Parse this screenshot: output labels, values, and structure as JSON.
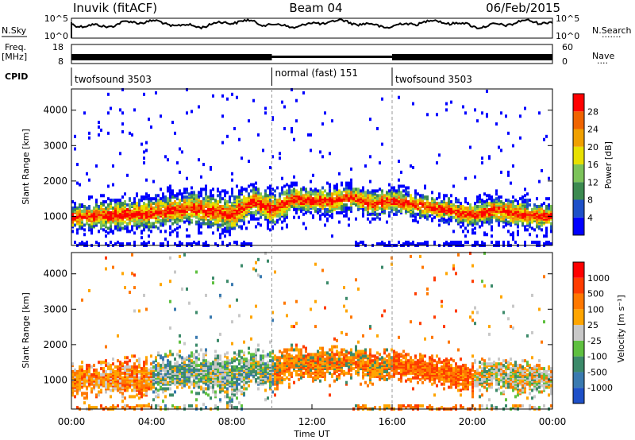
{
  "header": {
    "station": "Inuvik (fitACF)",
    "beam": "Beam 04",
    "date": "06/Feb/2015"
  },
  "side_labels": {
    "nsky": "N.Sky",
    "freq": "Freq.",
    "freq_unit": "[MHz]",
    "cpid": "CPID",
    "nsearch": "N.Search",
    "nave": "Nave",
    "dots": "·······",
    "dots_short": "····"
  },
  "noise_panel": {
    "left_ticks": [
      "10^5",
      "10^0"
    ],
    "right_ticks": [
      "10^5",
      "10^0"
    ]
  },
  "freq_panel": {
    "left_ticks": [
      "18",
      "8"
    ],
    "right_ticks": [
      "60",
      "0"
    ]
  },
  "cpid_segments": [
    {
      "label": "twofsound 3503",
      "start_hr": 0,
      "end_hr": 10
    },
    {
      "label": "normal (fast) 151",
      "start_hr": 10,
      "end_hr": 16
    },
    {
      "label": "twofsound 3503",
      "start_hr": 16,
      "end_hr": 24
    }
  ],
  "x_axis": {
    "label": "Time UT",
    "range_hr": [
      0,
      24
    ],
    "ticks": [
      "00:00",
      "04:00",
      "08:00",
      "12:00",
      "16:00",
      "20:00",
      "00:00"
    ]
  },
  "chart_data": [
    {
      "type": "heatmap",
      "name": "power",
      "ylabel": "Slant Range [km]",
      "ylim": [
        180,
        4600
      ],
      "yticks": [
        "1000",
        "2000",
        "3000",
        "4000"
      ],
      "colorbar_label": "Power [dB]",
      "colorbar_ticks": [
        "28",
        "24",
        "20",
        "16",
        "12",
        "8",
        "4"
      ],
      "colors": [
        "#0000ff",
        "#1e50c8",
        "#3c8a50",
        "#7cc35a",
        "#e8e000",
        "#f0a000",
        "#f06400",
        "#ff0000"
      ]
    },
    {
      "type": "heatmap",
      "name": "velocity",
      "ylabel": "Slant Range [km]",
      "ylim": [
        180,
        4600
      ],
      "yticks": [
        "1000",
        "2000",
        "3000",
        "4000"
      ],
      "colorbar_label": "Velocity [m s⁻¹]",
      "colorbar_ticks": [
        "1000",
        "500",
        "100",
        "25",
        "-25",
        "-100",
        "-500",
        "-1000"
      ],
      "colors": [
        "#1e50c8",
        "#3a7ab0",
        "#3c8a6a",
        "#5fc040",
        "#c8c8c8",
        "#ffa500",
        "#ff7800",
        "#ff3c00",
        "#ff0000"
      ]
    }
  ]
}
